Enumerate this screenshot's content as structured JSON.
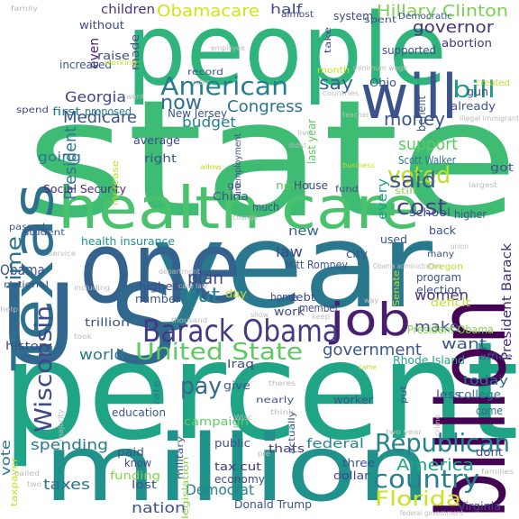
{
  "words": [
    {
      "text": "state",
      "color": "#3fbc73"
    },
    {
      "text": "percent",
      "color": "#20a486"
    },
    {
      "text": "people",
      "color": "#2fb47c"
    },
    {
      "text": "year",
      "color": "#2a788e"
    },
    {
      "text": "one",
      "color": "#33638d"
    },
    {
      "text": "million",
      "color": "#21918c"
    },
    {
      "text": "U S",
      "color": "#31688e"
    },
    {
      "text": "health care",
      "color": "#4ac16d"
    },
    {
      "text": "billion",
      "color": "#440154"
    },
    {
      "text": "Texas",
      "color": "#2d708e"
    },
    {
      "text": "will",
      "color": "#3b528b"
    },
    {
      "text": "job",
      "color": "#481f70"
    },
    {
      "text": "Barack Obama",
      "color": "#443a83"
    },
    {
      "text": "United State",
      "color": "#5ec962"
    },
    {
      "text": "Republican",
      "color": "#26828e"
    },
    {
      "text": "country",
      "color": "#277f8e"
    },
    {
      "text": "American",
      "color": "#287c8e"
    },
    {
      "text": "Wisconsin",
      "color": "#3e4989"
    },
    {
      "text": "voted",
      "color": "#bddf26"
    },
    {
      "text": "cost",
      "color": "#414487"
    },
    {
      "text": "said",
      "color": "#39568c"
    },
    {
      "text": "bill",
      "color": "#1f9a8a"
    },
    {
      "text": "money",
      "color": "#3b528b"
    },
    {
      "text": "pay",
      "color": "#31688e"
    },
    {
      "text": "time",
      "color": "#2c728e"
    },
    {
      "text": "Florida",
      "color": "#cde11d"
    },
    {
      "text": "Obamacare",
      "color": "#d5e21a"
    },
    {
      "text": "Hillary Clinton",
      "color": "#7ad151"
    },
    {
      "text": "governor",
      "color": "#46337e"
    },
    {
      "text": "President",
      "color": "#2a788e"
    },
    {
      "text": "Medicare",
      "color": "#3b528b"
    },
    {
      "text": "Congress",
      "color": "#2c728e"
    },
    {
      "text": "say",
      "color": "#33638d"
    },
    {
      "text": "now",
      "color": "#2e6e8e"
    },
    {
      "text": "budget",
      "color": "#26828e"
    },
    {
      "text": "support",
      "color": "#5ec962"
    },
    {
      "text": "government",
      "color": "#39568c"
    },
    {
      "text": "America",
      "color": "#20a486"
    },
    {
      "text": "cut",
      "color": "#25858e"
    },
    {
      "text": "plan",
      "color": "#3e4989"
    },
    {
      "text": "law",
      "color": "#3e4989"
    },
    {
      "text": "Obama",
      "color": "#3b528b"
    },
    {
      "text": "women",
      "color": "#46337e"
    },
    {
      "text": "make",
      "color": "#3e4989"
    },
    {
      "text": "want",
      "color": "#39568c"
    },
    {
      "text": "world",
      "color": "#2a788e"
    },
    {
      "text": "vote",
      "color": "#2a788e"
    },
    {
      "text": "spending",
      "color": "#2a788e"
    },
    {
      "text": "taxes",
      "color": "#2c728e"
    },
    {
      "text": "nation",
      "color": "#3b528b"
    },
    {
      "text": "Democrat",
      "color": "#26828e"
    },
    {
      "text": "federal",
      "color": "#25858e"
    },
    {
      "text": "today",
      "color": "#2d708e"
    },
    {
      "text": "Georgia",
      "color": "#3e4989"
    },
    {
      "text": "going",
      "color": "#2a788e"
    },
    {
      "text": "every",
      "color": "#1fa187"
    },
    {
      "text": "President Barack",
      "color": "#472d7b"
    },
    {
      "text": "new",
      "color": "#31688e"
    },
    {
      "text": "even",
      "color": "#482576"
    },
    {
      "text": "children",
      "color": "#46337e"
    },
    {
      "text": "half",
      "color": "#3e4989"
    },
    {
      "text": "Scott Walker",
      "color": "#2a788e"
    },
    {
      "text": "Social Security",
      "color": "#472d7b"
    },
    {
      "text": "health insurance",
      "color": "#21918c"
    },
    {
      "text": "Rhode Island",
      "color": "#22a785"
    },
    {
      "text": "benefit",
      "color": "#3b528b"
    },
    {
      "text": "abortion",
      "color": "#46337e"
    },
    {
      "text": "gun",
      "color": "#3e4989"
    },
    {
      "text": "Donald Trump",
      "color": "#3b528b"
    },
    {
      "text": "Virginia",
      "color": "#3e4989"
    },
    {
      "text": "work",
      "color": "#3e4989"
    },
    {
      "text": "member",
      "color": "#3e4989"
    },
    {
      "text": "college",
      "color": "#2a788e"
    },
    {
      "text": "come",
      "color": "#31688e"
    },
    {
      "text": "Iraq",
      "color": "#3e4989"
    },
    {
      "text": "history",
      "color": "#3e4989"
    },
    {
      "text": "campaign",
      "color": "#5ec962"
    },
    {
      "text": "education",
      "color": "#3b528b"
    },
    {
      "text": "tax cut",
      "color": "#46337e"
    },
    {
      "text": "economy",
      "color": "#3e4989"
    },
    {
      "text": "funding",
      "color": "#84d44b"
    },
    {
      "text": "paid",
      "color": "#3b528b"
    },
    {
      "text": "know",
      "color": "#3e4989"
    },
    {
      "text": "public",
      "color": "#3b528b"
    },
    {
      "text": "thats",
      "color": "#46337e"
    },
    {
      "text": "trillion",
      "color": "#3b528b"
    },
    {
      "text": "number",
      "color": "#3b528b"
    },
    {
      "text": "highest",
      "color": "#3e4989"
    },
    {
      "text": "Mitt Romney",
      "color": "#3b528b"
    },
    {
      "text": "school",
      "color": "#3b528b"
    },
    {
      "text": "program",
      "color": "#3b528b"
    },
    {
      "text": "election",
      "color": "#3b528b"
    },
    {
      "text": "deficit",
      "color": "#c2df23"
    },
    {
      "text": "President Obama",
      "color": "#84d44b"
    },
    {
      "text": "debt",
      "color": "#3e4989"
    },
    {
      "text": "home",
      "color": "#3e4989"
    },
    {
      "text": "day",
      "color": "#c2df23"
    },
    {
      "text": "city",
      "color": "#3b528b"
    },
    {
      "text": "used",
      "color": "#3b528b"
    },
    {
      "text": "higher",
      "color": "#3b528b"
    },
    {
      "text": "back",
      "color": "#3b528b"
    },
    {
      "text": "average",
      "color": "#3e4989"
    },
    {
      "text": "right",
      "color": "#3b528b"
    },
    {
      "text": "never",
      "color": "#5ec962"
    },
    {
      "text": "House",
      "color": "#3e4989"
    },
    {
      "text": "much",
      "color": "#3b528b"
    },
    {
      "text": "China",
      "color": "#3b528b"
    },
    {
      "text": "first",
      "color": "#2a788e"
    },
    {
      "text": "New Jersey",
      "color": "#3b528b"
    },
    {
      "text": "proposed",
      "color": "#2a788e"
    },
    {
      "text": "increased",
      "color": "#3b528b"
    },
    {
      "text": "raise",
      "color": "#3e4989"
    },
    {
      "text": "without",
      "color": "#3e4989"
    },
    {
      "text": "made",
      "color": "#3e4989"
    },
    {
      "text": "Democratic",
      "color": "#3b528b"
    },
    {
      "text": "system",
      "color": "#3e4989"
    },
    {
      "text": "spent",
      "color": "#3e4989"
    },
    {
      "text": "almost",
      "color": "#3e4989"
    },
    {
      "text": "take",
      "color": "#3e4989"
    },
    {
      "text": "supported",
      "color": "#3b528b"
    },
    {
      "text": "Ohio",
      "color": "#3b528b"
    },
    {
      "text": "record",
      "color": "#3b528b"
    },
    {
      "text": "month",
      "color": "#cde11d"
    },
    {
      "text": "already",
      "color": "#3b528b"
    },
    {
      "text": "created",
      "color": "#c2df23"
    },
    {
      "text": "still",
      "color": "#84d44b"
    },
    {
      "text": "got",
      "color": "#3b528b"
    },
    {
      "text": "go",
      "color": "#3b528b"
    },
    {
      "text": "last year",
      "color": "#5ec962"
    },
    {
      "text": "unemployment",
      "color": "#3e4989"
    },
    {
      "text": "fund",
      "color": "#3b528b"
    },
    {
      "text": "give",
      "color": "#3b528b"
    },
    {
      "text": "military",
      "color": "#3b528b"
    },
    {
      "text": "rate",
      "color": "#2a788e"
    },
    {
      "text": "nearly",
      "color": "#3b528b"
    },
    {
      "text": "actually",
      "color": "#3b528b"
    },
    {
      "text": "worker",
      "color": "#3b528b"
    },
    {
      "text": "legislation",
      "color": "#84d44b"
    },
    {
      "text": "three",
      "color": "#3b528b"
    },
    {
      "text": "dollar",
      "color": "#3e4989"
    },
    {
      "text": "dont",
      "color": "#3e4989"
    },
    {
      "text": "lost",
      "color": "#3b528b"
    },
    {
      "text": "passed",
      "color": "#3b528b"
    },
    {
      "text": "national",
      "color": "#3b528b"
    },
    {
      "text": "student",
      "color": "#3b528b"
    },
    {
      "text": "spend",
      "color": "#3e4989"
    },
    {
      "text": "put",
      "color": "#3b528b"
    },
    {
      "text": "less",
      "color": "#3b528b"
    },
    {
      "text": "office",
      "color": "#3b528b"
    },
    {
      "text": "Senate",
      "color": "#c2df23"
    },
    {
      "text": "Oregon",
      "color": "#c2df23"
    },
    {
      "text": "many",
      "color": "#3b528b"
    },
    {
      "text": "increase",
      "color": "#c2df23"
    },
    {
      "text": "taxpayer",
      "color": "#c2df23"
    },
    {
      "text": "family",
      "color": "#bbbbbb"
    },
    {
      "text": "working",
      "color": "#c2df23"
    },
    {
      "text": "employee",
      "color": "#bbbbbb"
    },
    {
      "text": "minimum wage",
      "color": "#bbbbbb"
    },
    {
      "text": "countries",
      "color": "#bbbbbb"
    },
    {
      "text": "teacher",
      "color": "#bbbbbb"
    },
    {
      "text": "illegal immigrant",
      "color": "#bbbbbb"
    },
    {
      "text": "largest",
      "color": "#bbbbbb"
    },
    {
      "text": "business",
      "color": "#c2df23"
    },
    {
      "text": "allow",
      "color": "#c2df23"
    },
    {
      "text": "didnt",
      "color": "#bbbbbb"
    },
    {
      "text": "live",
      "color": "#bbbbbb"
    },
    {
      "text": "department",
      "color": "#bbbbbb"
    },
    {
      "text": "change",
      "color": "#bbbbbb"
    },
    {
      "text": "service",
      "color": "#bbbbbb"
    },
    {
      "text": "union",
      "color": "#bbbbbb"
    },
    {
      "text": "Obama administration",
      "color": "#bbbbbb"
    },
    {
      "text": "care law",
      "color": "#bbbbbb"
    },
    {
      "text": "including",
      "color": "#bbbbbb"
    },
    {
      "text": "help",
      "color": "#bbbbbb"
    },
    {
      "text": "thousand",
      "color": "#bbbbbb"
    },
    {
      "text": "show",
      "color": "#bbbbbb"
    },
    {
      "text": "keep",
      "color": "#bbbbbb"
    },
    {
      "text": "way",
      "color": "#bbbbbb"
    },
    {
      "text": "took",
      "color": "#bbbbbb"
    },
    {
      "text": "came",
      "color": "#c2df23"
    },
    {
      "text": "theres",
      "color": "#bbbbbb"
    },
    {
      "text": "think",
      "color": "#bbbbbb"
    },
    {
      "text": "crime",
      "color": "#bbbbbb"
    },
    {
      "text": "two year",
      "color": "#bbbbbb"
    },
    {
      "text": "majority",
      "color": "#bbbbbb"
    },
    {
      "text": "called",
      "color": "#bbbbbb"
    },
    {
      "text": "two",
      "color": "#bbbbbb"
    },
    {
      "text": "families",
      "color": "#bbbbbb"
    },
    {
      "text": "federal government",
      "color": "#bbbbbb"
    },
    {
      "text": "went",
      "color": "#bbbbbb"
    },
    {
      "text": "voter",
      "color": "#bbbbbb"
    },
    {
      "text": "pre",
      "color": "#bbbbbb"
    },
    {
      "text": "Wisc",
      "color": "#bbbbbb"
    }
  ]
}
